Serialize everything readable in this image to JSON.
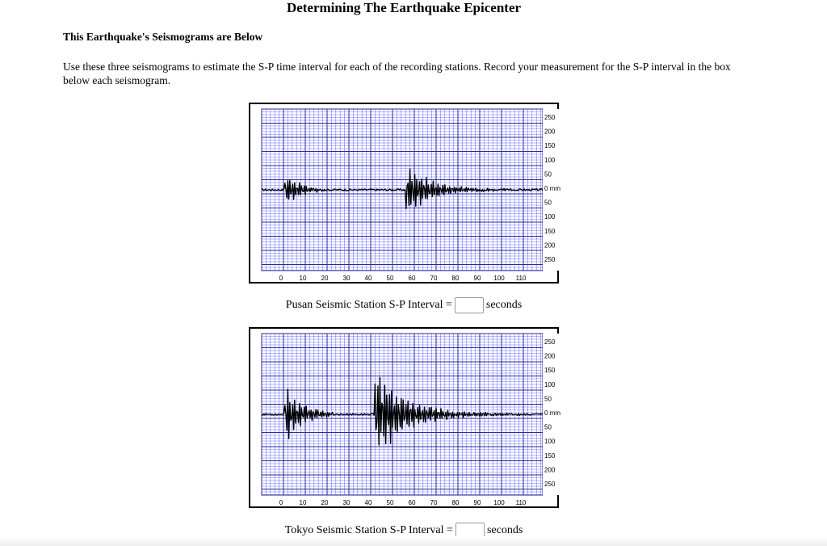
{
  "page": {
    "title": "Determining The Earthquake Epicenter",
    "subtitle": "This Earthquake's Seismograms are Below",
    "instructions": "Use these three seismograms to estimate the S-P time interval for each of the recording stations. Record your measurement for the S-P interval in the box below each seismogram."
  },
  "seismogram_axes": {
    "amplitude_labels": [
      "250",
      "200",
      "150",
      "100",
      "50",
      "0 mm",
      "50",
      "100",
      "150",
      "200",
      "250"
    ],
    "time_labels": [
      "0",
      "10",
      "20",
      "30",
      "40",
      "50",
      "60",
      "70",
      "80",
      "90",
      "100",
      "110"
    ]
  },
  "stations": [
    {
      "label": "Pusan Seismic Station S-P Interval =",
      "value": "",
      "units": "seconds"
    },
    {
      "label": "Tokyo Seismic Station S-P Interval =",
      "value": "",
      "units": "seconds"
    }
  ],
  "colors": {
    "grid_minor": "#4a4aff",
    "grid_major": "#2a2a9a",
    "trace": "#000000"
  }
}
